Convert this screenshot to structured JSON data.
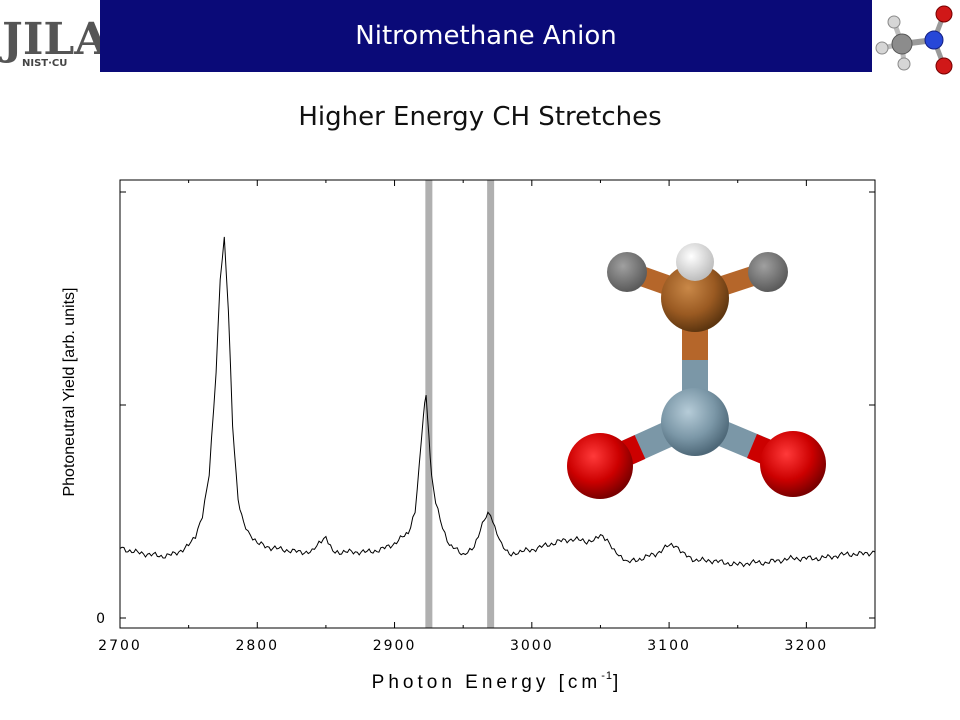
{
  "header": {
    "title": "Nitromethane Anion",
    "logo_text": "JILA",
    "logo_subtext": "NIST·CU",
    "banner_color": "#0a0a78"
  },
  "chart_data": {
    "type": "line",
    "title": "Higher Energy CH Stretches",
    "xlabel": "Photon Energy [cm",
    "xlabel_sup": "-1",
    "xlabel_tail": "]",
    "ylabel": "Photoneutral Yield [arb. units]",
    "xlim": [
      2700,
      3250
    ],
    "ylim": [
      0,
      100
    ],
    "x_ticks": [
      2700,
      2800,
      2900,
      3000,
      3100,
      3200
    ],
    "y_tick_labels": [
      {
        "value": 0,
        "label": "0"
      }
    ],
    "grid": false,
    "highlight_bands": [
      2925,
      2970
    ],
    "band_color": "#b0b0b0",
    "series": [
      {
        "x": [
          2700,
          2710,
          2720,
          2730,
          2740,
          2750,
          2755,
          2760,
          2765,
          2770,
          2773,
          2776,
          2779,
          2782,
          2786,
          2790,
          2795,
          2800,
          2810,
          2820,
          2830,
          2840,
          2845,
          2850,
          2855,
          2860,
          2870,
          2880,
          2890,
          2900,
          2910,
          2915,
          2918,
          2921,
          2923,
          2925,
          2927,
          2930,
          2935,
          2940,
          2950,
          2958,
          2964,
          2968,
          2970,
          2973,
          2978,
          2985,
          2990,
          3000,
          3010,
          3020,
          3030,
          3040,
          3045,
          3050,
          3055,
          3060,
          3065,
          3070,
          3080,
          3090,
          3100,
          3105,
          3110,
          3120,
          3130,
          3140,
          3150,
          3160,
          3170,
          3180,
          3190,
          3200,
          3210,
          3220,
          3230,
          3240,
          3250
        ],
        "y": [
          16.5,
          15.5,
          15,
          14.5,
          15,
          17,
          19,
          24,
          34,
          58,
          80,
          89,
          72,
          45,
          28,
          22,
          19,
          17.5,
          16.5,
          16,
          15.5,
          15.5,
          17.5,
          19,
          16,
          15.5,
          15.5,
          15.5,
          16,
          17.5,
          20,
          25,
          36,
          48,
          52,
          43,
          33,
          27,
          21,
          17,
          15,
          17,
          22,
          24.5,
          24,
          21,
          17,
          15,
          15.5,
          16,
          17,
          18,
          18.5,
          18,
          18.5,
          19.5,
          18,
          15.5,
          14,
          13,
          14,
          15,
          17,
          16.5,
          15,
          13.5,
          13.5,
          13,
          12.5,
          13,
          13,
          13.5,
          14,
          14,
          14,
          14.5,
          15,
          15,
          15.5
        ]
      }
    ]
  }
}
